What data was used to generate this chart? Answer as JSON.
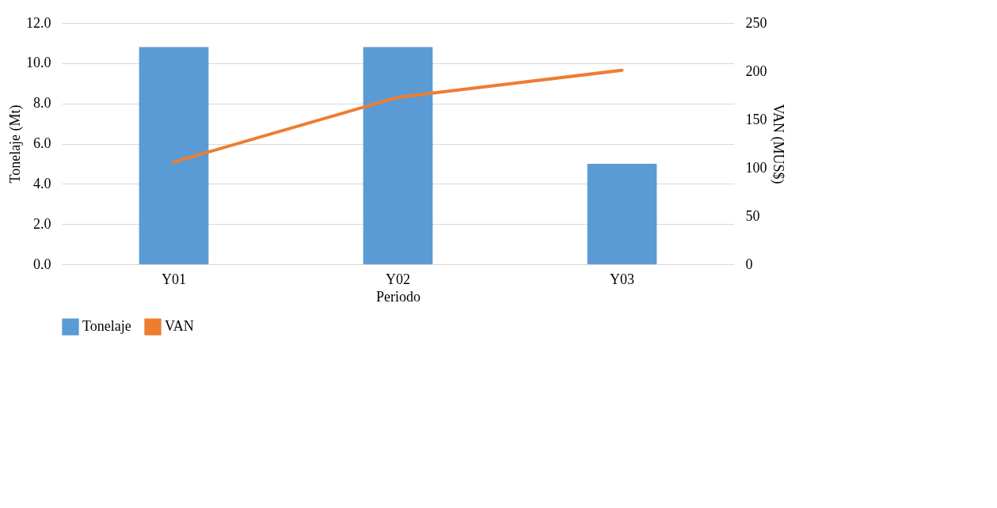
{
  "chart_data": {
    "type": "bar",
    "xlabel": "Periodo",
    "ylabel": "Tonelaje (Mt)",
    "y2label": "VAN (MUS$)",
    "categories": [
      "Y01",
      "Y02",
      "Y03"
    ],
    "series": [
      {
        "name": "Tonelaje",
        "color": "#5b9bd5",
        "values": [
          10.8,
          10.8,
          5.0
        ]
      },
      {
        "name": "VAN",
        "type": "line",
        "axis": "y2",
        "color": "#ed7d31",
        "values": [
          106,
          173,
          201
        ]
      }
    ],
    "ylim": [
      0,
      12
    ],
    "yticks": [
      {
        "value": 0,
        "label": "0.0"
      },
      {
        "value": 2,
        "label": "2.0"
      },
      {
        "value": 4,
        "label": "4.0"
      },
      {
        "value": 6,
        "label": "6.0"
      },
      {
        "value": 8,
        "label": "8.0"
      },
      {
        "value": 10,
        "label": "10.0"
      },
      {
        "value": 12,
        "label": "12.0"
      }
    ],
    "y2lim": [
      0,
      250
    ],
    "y2ticks": [
      0,
      50,
      100,
      150,
      200,
      250
    ],
    "grid": "y",
    "legend": "bottom",
    "marker": "none",
    "line_style": "solid"
  }
}
